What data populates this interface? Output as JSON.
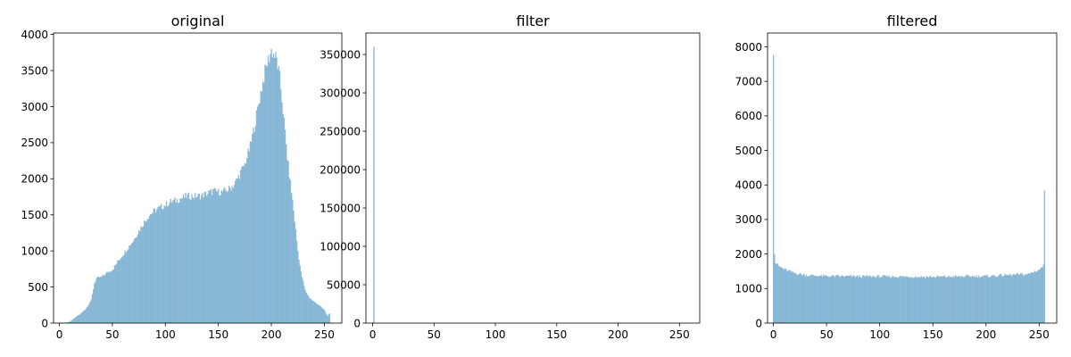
{
  "chart_data": [
    {
      "type": "bar",
      "title": "original",
      "xlabel": "",
      "ylabel": "",
      "xlim": [
        -5.5,
        266.5
      ],
      "ylim": [
        0,
        4020
      ],
      "xticks": [
        0,
        50,
        100,
        150,
        200,
        250
      ],
      "yticks": [
        0,
        500,
        1000,
        1500,
        2000,
        2500,
        3000,
        3500,
        4000
      ],
      "bins": 256,
      "bar_color": "#1f77b4",
      "bar_alpha": 0.5,
      "grid": false,
      "profile": [
        [
          0,
          5
        ],
        [
          5,
          3
        ],
        [
          10,
          20
        ],
        [
          15,
          80
        ],
        [
          20,
          130
        ],
        [
          25,
          200
        ],
        [
          30,
          320
        ],
        [
          33,
          550
        ],
        [
          35,
          620
        ],
        [
          40,
          640
        ],
        [
          45,
          700
        ],
        [
          50,
          740
        ],
        [
          55,
          850
        ],
        [
          60,
          950
        ],
        [
          65,
          1050
        ],
        [
          70,
          1150
        ],
        [
          75,
          1280
        ],
        [
          80,
          1400
        ],
        [
          85,
          1500
        ],
        [
          90,
          1560
        ],
        [
          95,
          1600
        ],
        [
          100,
          1640
        ],
        [
          105,
          1680
        ],
        [
          110,
          1700
        ],
        [
          115,
          1730
        ],
        [
          120,
          1760
        ],
        [
          125,
          1760
        ],
        [
          130,
          1760
        ],
        [
          135,
          1770
        ],
        [
          140,
          1800
        ],
        [
          145,
          1830
        ],
        [
          150,
          1820
        ],
        [
          155,
          1820
        ],
        [
          160,
          1860
        ],
        [
          165,
          1920
        ],
        [
          170,
          2060
        ],
        [
          175,
          2200
        ],
        [
          180,
          2450
        ],
        [
          185,
          2800
        ],
        [
          190,
          3200
        ],
        [
          195,
          3550
        ],
        [
          200,
          3780
        ],
        [
          205,
          3650
        ],
        [
          208,
          3400
        ],
        [
          212,
          2800
        ],
        [
          215,
          2300
        ],
        [
          220,
          1700
        ],
        [
          225,
          1000
        ],
        [
          228,
          700
        ],
        [
          232,
          450
        ],
        [
          236,
          350
        ],
        [
          240,
          300
        ],
        [
          245,
          250
        ],
        [
          250,
          180
        ],
        [
          253,
          100
        ],
        [
          255,
          130
        ]
      ]
    },
    {
      "type": "bar",
      "title": "filter",
      "xlabel": "",
      "ylabel": "",
      "xlim": [
        -5.5,
        266.5
      ],
      "ylim": [
        0,
        378000
      ],
      "xticks": [
        0,
        50,
        100,
        150,
        200,
        250
      ],
      "yticks": [
        0,
        50000,
        100000,
        150000,
        200000,
        250000,
        300000,
        350000
      ],
      "bins": 256,
      "bar_color": "#1f77b4",
      "bar_alpha": 0.5,
      "grid": false,
      "spikes": [
        [
          1,
          360000
        ]
      ]
    },
    {
      "type": "bar",
      "title": "filtered",
      "xlabel": "",
      "ylabel": "",
      "xlim": [
        -5.5,
        266.5
      ],
      "ylim": [
        0,
        8400
      ],
      "xticks": [
        0,
        50,
        100,
        150,
        200,
        250
      ],
      "yticks": [
        0,
        1000,
        2000,
        3000,
        4000,
        5000,
        6000,
        7000,
        8000
      ],
      "bins": 256,
      "bar_color": "#1f77b4",
      "bar_alpha": 0.5,
      "grid": false,
      "profile": [
        [
          0,
          8000
        ],
        [
          1,
          2050
        ],
        [
          2,
          1750
        ],
        [
          5,
          1650
        ],
        [
          10,
          1560
        ],
        [
          20,
          1450
        ],
        [
          30,
          1390
        ],
        [
          50,
          1360
        ],
        [
          100,
          1350
        ],
        [
          150,
          1340
        ],
        [
          200,
          1360
        ],
        [
          240,
          1420
        ],
        [
          250,
          1550
        ],
        [
          254,
          1650
        ],
        [
          255,
          3920
        ]
      ]
    }
  ]
}
